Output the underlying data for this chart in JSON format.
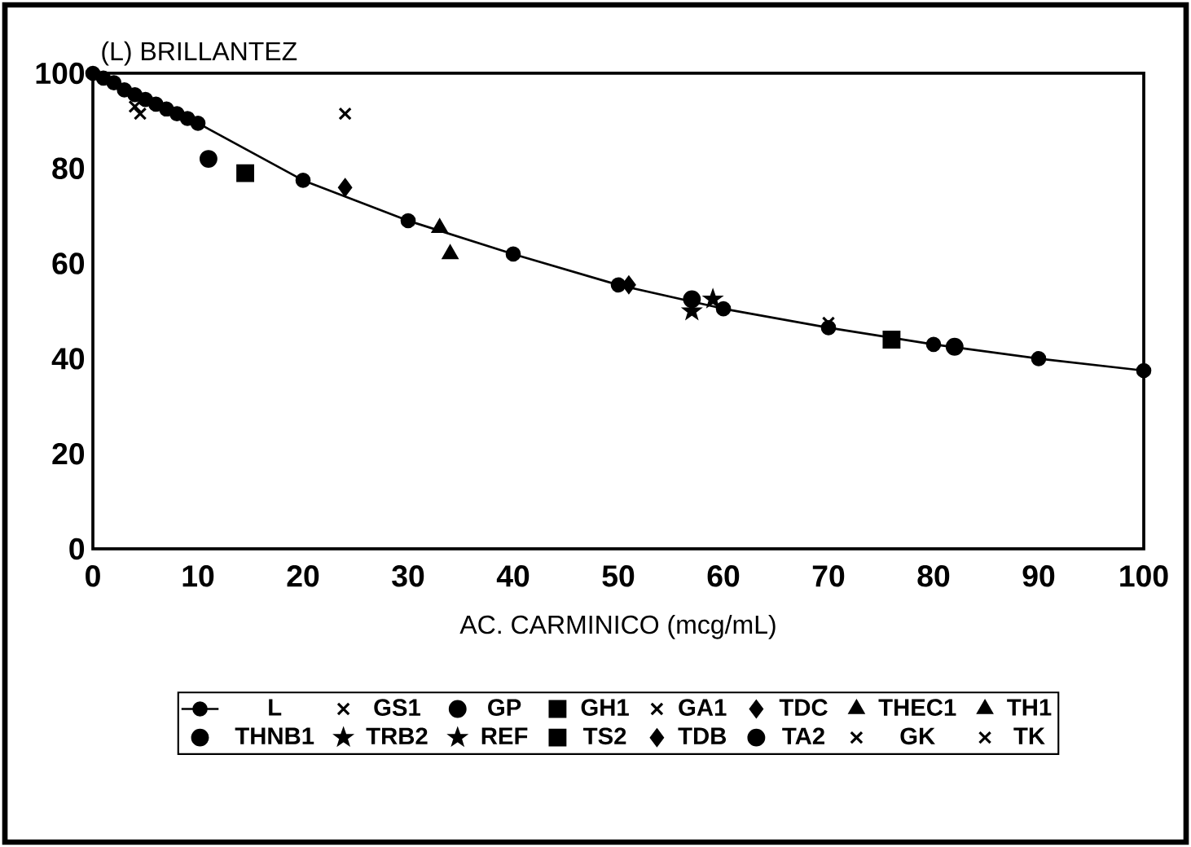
{
  "chart_data": {
    "type": "scatter",
    "ylabel": "(L) BRILLANTEZ",
    "xlabel": "AC. CARMINICO (mcg/mL)",
    "xlim": [
      0,
      100
    ],
    "ylim": [
      0,
      100
    ],
    "xticks": [
      0,
      10,
      20,
      30,
      40,
      50,
      60,
      70,
      80,
      90,
      100
    ],
    "yticks": [
      0,
      20,
      40,
      60,
      80,
      100
    ],
    "legend": "bottom",
    "grid": false,
    "series": [
      {
        "name": "L",
        "type": "line",
        "marker": "circle",
        "color": "#000000",
        "x": [
          0,
          1,
          2,
          3,
          4,
          5,
          6,
          7,
          8,
          9,
          10,
          20,
          30,
          40,
          50,
          60,
          70,
          80,
          90,
          100
        ],
        "values": [
          100,
          99,
          98,
          96.5,
          95.5,
          94.5,
          93.5,
          92.5,
          91.5,
          90.5,
          89.5,
          77.5,
          69,
          62,
          55.5,
          50.5,
          46.5,
          43,
          40,
          37.5
        ]
      },
      {
        "name": "GS1",
        "marker": "cross",
        "color": "#000000",
        "x": [
          4.5
        ],
        "values": [
          91.5
        ]
      },
      {
        "name": "GP",
        "marker": "circle",
        "color": "#000000",
        "x": [
          11
        ],
        "values": [
          82
        ]
      },
      {
        "name": "GH1",
        "marker": "square",
        "color": "#000000",
        "x": [
          14.5
        ],
        "values": [
          79
        ]
      },
      {
        "name": "GA1",
        "marker": "cross",
        "color": "#000000",
        "x": [
          24
        ],
        "values": [
          91.5
        ]
      },
      {
        "name": "TDC",
        "marker": "diamond",
        "color": "#000000",
        "x": [
          24
        ],
        "values": [
          76
        ]
      },
      {
        "name": "THEC1",
        "marker": "triangle",
        "color": "#000000",
        "x": [
          33
        ],
        "values": [
          67.5
        ]
      },
      {
        "name": "TH1",
        "marker": "triangle",
        "color": "#000000",
        "x": [
          34
        ],
        "values": [
          62
        ]
      },
      {
        "name": "THNB1",
        "marker": "circle",
        "color": "#000000",
        "x": [
          57
        ],
        "values": [
          52.5
        ]
      },
      {
        "name": "TRB2",
        "marker": "star",
        "color": "#000000",
        "x": [
          57
        ],
        "values": [
          50
        ]
      },
      {
        "name": "REF",
        "marker": "star",
        "color": "#000000",
        "x": [
          59
        ],
        "values": [
          52.5
        ]
      },
      {
        "name": "TS2",
        "marker": "square",
        "color": "#000000",
        "x": [
          76
        ],
        "values": [
          44
        ]
      },
      {
        "name": "TDB",
        "marker": "diamond",
        "color": "#000000",
        "x": [
          51
        ],
        "values": [
          55.5
        ]
      },
      {
        "name": "TA2",
        "marker": "circle",
        "color": "#000000",
        "x": [
          82
        ],
        "values": [
          42.5
        ]
      },
      {
        "name": "GK",
        "marker": "cross",
        "color": "#000000",
        "x": [
          70
        ],
        "values": [
          47.5
        ]
      },
      {
        "name": "TK",
        "marker": "cross",
        "color": "#000000",
        "x": [
          4
        ],
        "values": [
          93
        ]
      }
    ]
  }
}
